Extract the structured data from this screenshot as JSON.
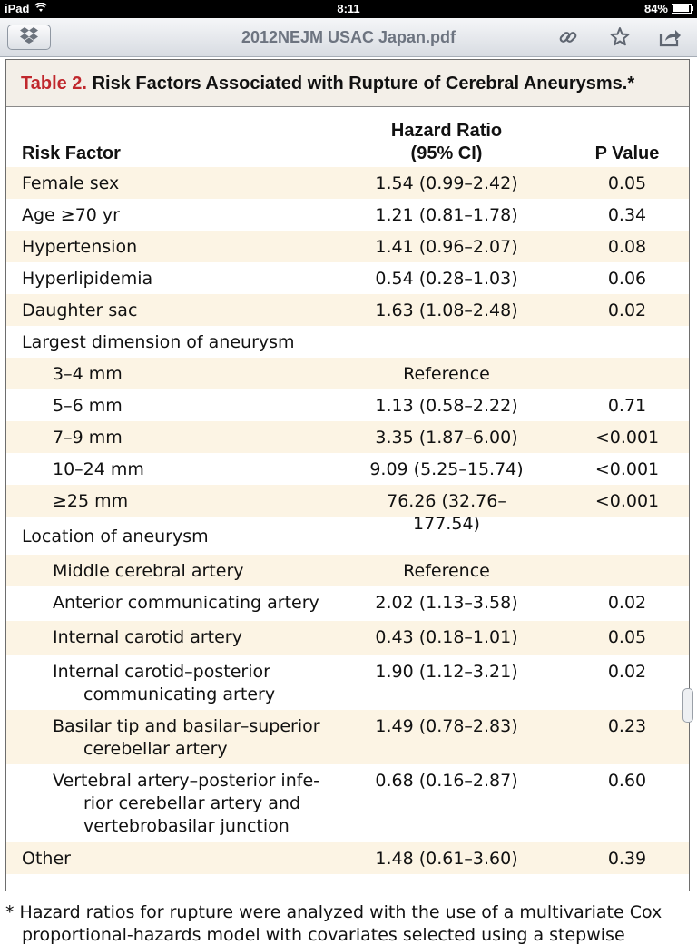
{
  "status_bar": {
    "device": "iPad",
    "time": "8:11",
    "battery": "84%"
  },
  "toolbar": {
    "title": "2012NEJM USAC Japan.pdf",
    "icons": [
      "dropbox-icon",
      "link-icon",
      "star-icon",
      "share-icon"
    ]
  },
  "table": {
    "caption_label": "Table 2.",
    "caption_text": "Risk Factors Associated with Rupture of Cerebral Aneurysms.*",
    "headers": {
      "factor": "Risk Factor",
      "hr_line1": "Hazard Ratio",
      "hr_line2": "(95% CI)",
      "p": "P Value"
    },
    "rows": [
      {
        "factor": "Female sex",
        "hr": "1.54 (0.99–2.42)",
        "p": "0.05"
      },
      {
        "factor": "Age ≥70 yr",
        "hr": "1.21 (0.81–1.78)",
        "p": "0.34"
      },
      {
        "factor": "Hypertension",
        "hr": "1.41 (0.96–2.07)",
        "p": "0.08"
      },
      {
        "factor": "Hyperlipidemia",
        "hr": "0.54 (0.28–1.03)",
        "p": "0.06"
      },
      {
        "factor": "Daughter sac",
        "hr": "1.63 (1.08–2.48)",
        "p": "0.02"
      },
      {
        "factor": "Largest dimension of aneurysm",
        "hr": "",
        "p": ""
      },
      {
        "factor": "3–4 mm",
        "hr": "Reference",
        "p": ""
      },
      {
        "factor": "5–6 mm",
        "hr": "1.13 (0.58–2.22)",
        "p": "0.71"
      },
      {
        "factor": "7–9 mm",
        "hr": "3.35 (1.87–6.00)",
        "p": "<0.001"
      },
      {
        "factor": "10–24 mm",
        "hr": "9.09 (5.25–15.74)",
        "p": "<0.001"
      },
      {
        "factor": "≥25 mm",
        "hr": "76.26 (32.76–177.54)",
        "p": "<0.001"
      },
      {
        "factor": "Location of aneurysm",
        "hr": "",
        "p": ""
      },
      {
        "factor": "Middle cerebral artery",
        "hr": "Reference",
        "p": ""
      },
      {
        "factor": "Anterior communicating artery",
        "hr": "2.02 (1.13–3.58)",
        "p": "0.02"
      },
      {
        "factor": "Internal carotid artery",
        "hr": "0.43 (0.18–1.01)",
        "p": "0.05"
      },
      {
        "factor": "Internal carotid–posterior",
        "factor2": "communicating artery",
        "hr": "1.90 (1.12–3.21)",
        "p": "0.02"
      },
      {
        "factor": "Basilar tip and basilar–superior",
        "factor2": "cerebellar artery",
        "hr": "1.49 (0.78–2.83)",
        "p": "0.23"
      },
      {
        "factor": "Vertebral artery–posterior infe-",
        "factor2": "rior cerebellar artery and",
        "factor3": "vertebrobasilar junction",
        "hr": "0.68 (0.16–2.87)",
        "p": "0.60"
      },
      {
        "factor": "Other",
        "hr": "1.48 (0.61–3.60)",
        "p": "0.39"
      }
    ]
  },
  "footnote": {
    "line1": "* Hazard ratios for rupture were analyzed with the use of a multivariate Cox",
    "line2": "proportional-hazards model with covariates selected using a stepwise"
  },
  "colors": {
    "caption_label": "#c0282d",
    "shade": "#fcf4e4",
    "caption_bg": "#f3efe8"
  }
}
